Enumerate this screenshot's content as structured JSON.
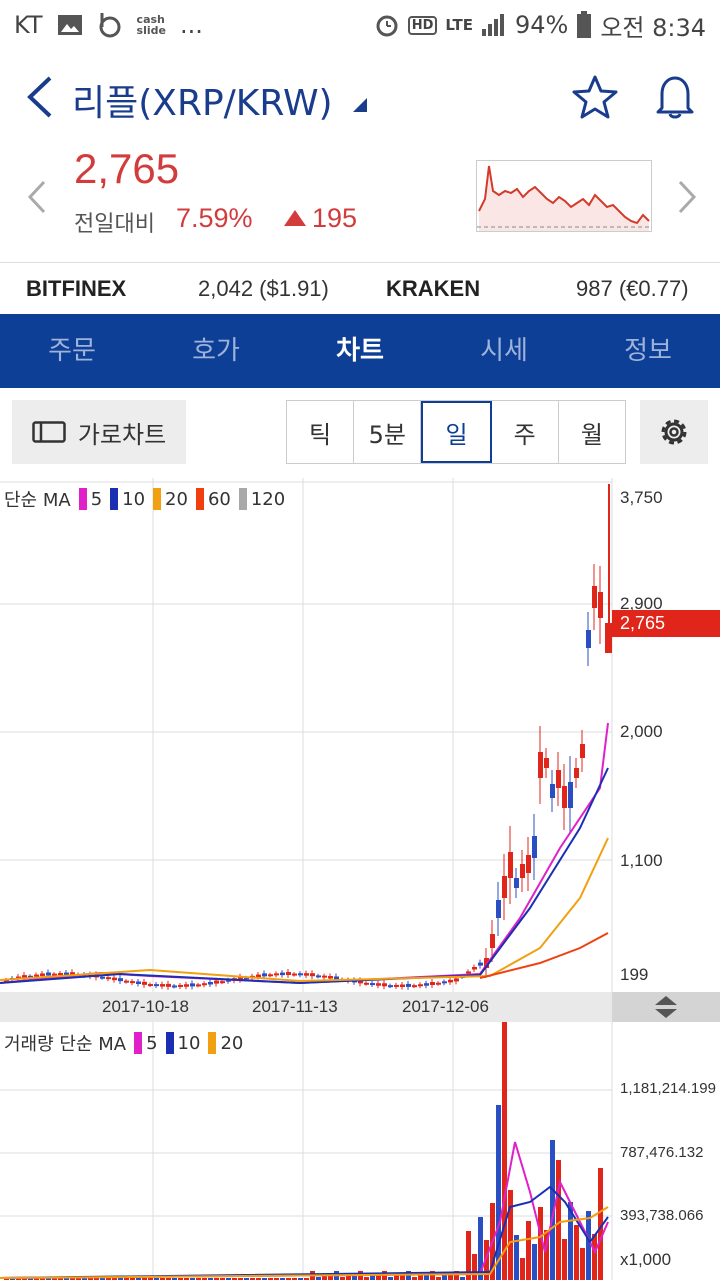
{
  "status": {
    "carrier": "KT",
    "app1": "cash\nslide",
    "more": "...",
    "network": "LTE",
    "hd": "HD",
    "battery": "94%",
    "time": "오전 8:34"
  },
  "header": {
    "title": "리플(XRP/KRW)"
  },
  "price": {
    "current": "2,765",
    "compare_label": "전일대비",
    "change_pct": "7.59%",
    "change_value": "195"
  },
  "exchanges": [
    {
      "name": "BITFINEX",
      "value": "2,042 ($1.91)"
    },
    {
      "name": "KRAKEN",
      "value": "987 (€0.77)"
    }
  ],
  "tabs": [
    "주문",
    "호가",
    "차트",
    "시세",
    "정보"
  ],
  "active_tab": "차트",
  "controls": {
    "landscape_label": "가로차트",
    "periods": [
      "틱",
      "5분",
      "일",
      "주",
      "월"
    ],
    "active_period": "일"
  },
  "colors": {
    "accent": "#0d3f96",
    "up": "#e0261b",
    "down": "#2a4fc2",
    "ma5": "#e020c8",
    "ma10": "#1b2fb3",
    "ma20": "#f0a010",
    "ma60": "#f04010",
    "ma120": "#a8a8a8"
  },
  "chart_data": [
    {
      "type": "candlestick",
      "legend_title": "단순 MA",
      "ma_periods": [
        "5",
        "10",
        "20",
        "60",
        "120"
      ],
      "y_ticks": [
        "3,750",
        "2,900",
        "2,000",
        "1,100",
        "199"
      ],
      "current_label": "2,765",
      "x_ticks": [
        "2017-10-18",
        "2017-11-13",
        "2017-12-06"
      ],
      "ylim": [
        199,
        3750
      ],
      "grid": true
    },
    {
      "type": "bar",
      "legend_title": "거래량 단순 MA",
      "ma_periods": [
        "5",
        "10",
        "20"
      ],
      "y_ticks": [
        "1,181,214.199",
        "787,476.132",
        "393,738.066"
      ],
      "unit": "x1,000",
      "grid": true
    }
  ]
}
